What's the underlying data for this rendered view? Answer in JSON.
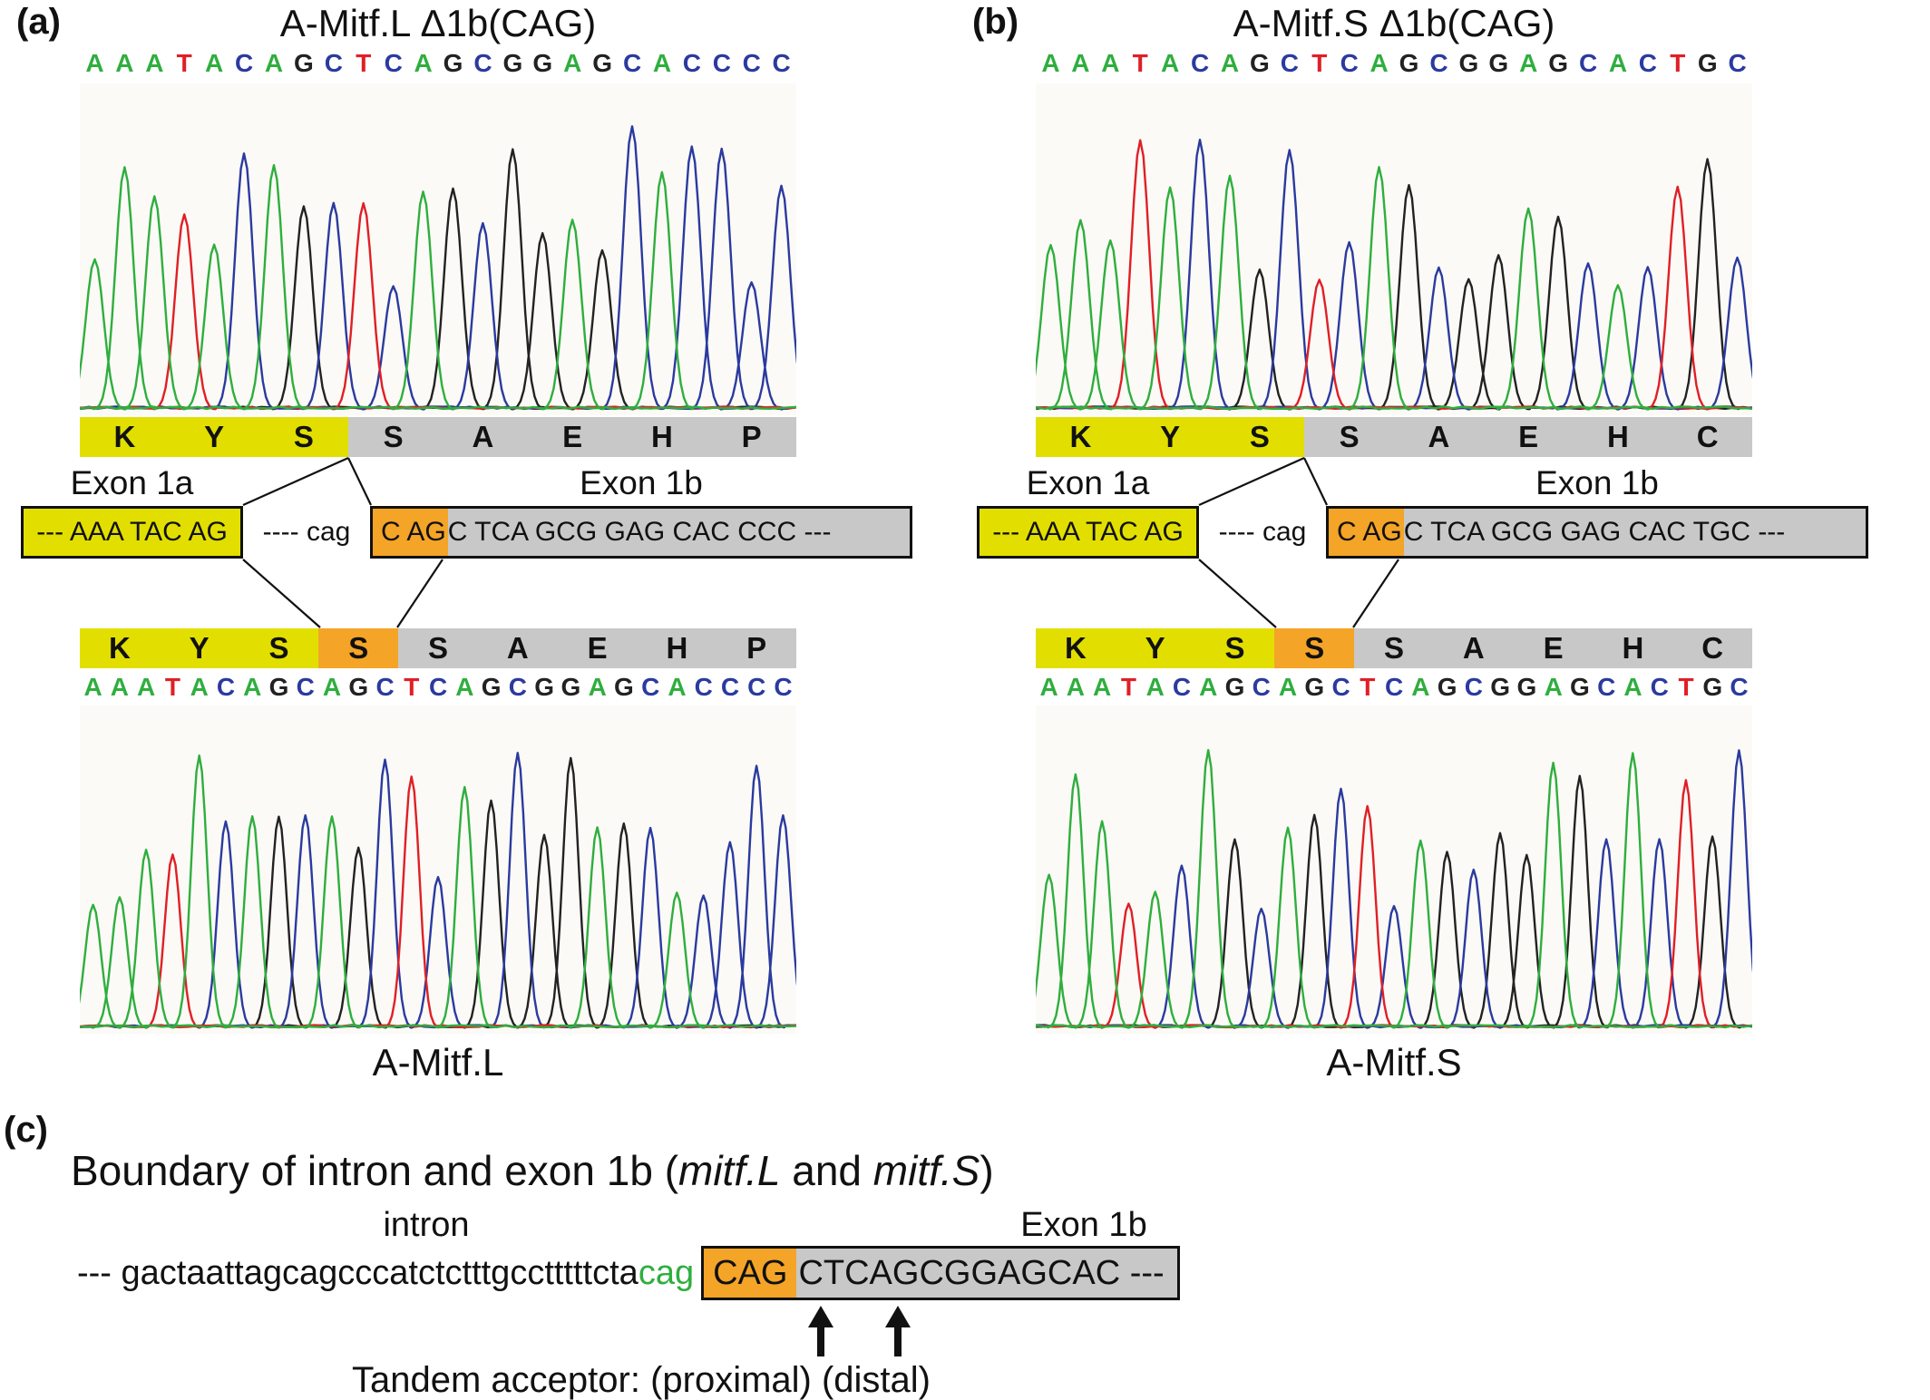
{
  "base_colors": {
    "A": "#2fae3e",
    "C": "#2b3a9f",
    "G": "#222222",
    "T": "#e01f26"
  },
  "highlight_colors": {
    "yellow": "#e2df00",
    "orange": "#f4a427",
    "gray": "#c8c8c8"
  },
  "panel_a": {
    "label": "(a)",
    "title": "A-Mitf.L Δ1b(CAG)",
    "caption": "A-Mitf.L",
    "top_sequence": "AAATACAGCTCAGCGGAGCACCCC",
    "bottom_sequence": "AAATACAGCAGCTCAGCGGAGCACCCC",
    "top_aa": [
      [
        "K",
        "yellow"
      ],
      [
        "Y",
        "yellow"
      ],
      [
        "S",
        "yellow"
      ],
      [
        "S",
        "gray"
      ],
      [
        "A",
        "gray"
      ],
      [
        "E",
        "gray"
      ],
      [
        "H",
        "gray"
      ],
      [
        "P",
        "gray"
      ]
    ],
    "bottom_aa": [
      [
        "K",
        "yellow"
      ],
      [
        "Y",
        "yellow"
      ],
      [
        "S",
        "yellow"
      ],
      [
        "S",
        "orange"
      ],
      [
        "S",
        "gray"
      ],
      [
        "A",
        "gray"
      ],
      [
        "E",
        "gray"
      ],
      [
        "H",
        "gray"
      ],
      [
        "P",
        "gray"
      ]
    ],
    "exon1a_label": "Exon 1a",
    "exon1b_label": "Exon 1b",
    "exon1a_text": "--- AAA TAC AG",
    "intron_text": "---- cag",
    "exon1b_orange_text": "C AG",
    "exon1b_gray_text": "C TCA GCG GAG CAC CCC ---"
  },
  "panel_b": {
    "label": "(b)",
    "title": "A-Mitf.S Δ1b(CAG)",
    "caption": "A-Mitf.S",
    "top_sequence": "AAATACAGCTCAGCGGAGCACTGC",
    "bottom_sequence": "AAATACAGCAGCTCAGCGGAGCACTGC",
    "top_aa": [
      [
        "K",
        "yellow"
      ],
      [
        "Y",
        "yellow"
      ],
      [
        "S",
        "yellow"
      ],
      [
        "S",
        "gray"
      ],
      [
        "A",
        "gray"
      ],
      [
        "E",
        "gray"
      ],
      [
        "H",
        "gray"
      ],
      [
        "C",
        "gray"
      ]
    ],
    "bottom_aa": [
      [
        "K",
        "yellow"
      ],
      [
        "Y",
        "yellow"
      ],
      [
        "S",
        "yellow"
      ],
      [
        "S",
        "orange"
      ],
      [
        "S",
        "gray"
      ],
      [
        "A",
        "gray"
      ],
      [
        "E",
        "gray"
      ],
      [
        "H",
        "gray"
      ],
      [
        "C",
        "gray"
      ]
    ],
    "exon1a_label": "Exon 1a",
    "exon1b_label": "Exon 1b",
    "exon1a_text": "--- AAA TAC AG",
    "intron_text": "---- cag",
    "exon1b_orange_text": "C AG",
    "exon1b_gray_text": "C TCA GCG GAG CAC TGC ---"
  },
  "panel_c": {
    "label": "(c)",
    "title": {
      "prefix": "Boundary of intron and exon 1b (",
      "italic1": "mitf.L",
      "middle": " and ",
      "italic2": "mitf.S",
      "suffix": ")"
    },
    "intron_label": "intron",
    "exon1b_label": "Exon 1b",
    "intron_seq": "--- gactaattagcagcccatctctttgcctttttcta",
    "acceptor_seq": "cag",
    "exon_orange_text": "CAG",
    "exon_gray_text": "CTCAGCGGAGCAC ---",
    "tandem_label": "Tandem acceptor: (proximal) (distal)"
  },
  "chart_data": [
    {
      "type": "line",
      "title": "A-Mitf.L Δ1b(CAG) Sanger chromatogram",
      "sequence": "AAATACAGCTCAGCGGAGCACCCC",
      "trace_colors": {
        "A": "green",
        "C": "blue",
        "G": "black",
        "T": "red"
      }
    },
    {
      "type": "line",
      "title": "A-Mitf.L Sanger chromatogram",
      "sequence": "AAATACAGCAGCTCAGCGGAGCACCCC",
      "trace_colors": {
        "A": "green",
        "C": "blue",
        "G": "black",
        "T": "red"
      }
    },
    {
      "type": "line",
      "title": "A-Mitf.S Δ1b(CAG) Sanger chromatogram",
      "sequence": "AAATACAGCTCAGCGGAGCACTGC",
      "trace_colors": {
        "A": "green",
        "C": "blue",
        "G": "black",
        "T": "red"
      }
    },
    {
      "type": "line",
      "title": "A-Mitf.S Sanger chromatogram",
      "sequence": "AAATACAGCAGCTCAGCGGAGCACTGC",
      "trace_colors": {
        "A": "green",
        "C": "blue",
        "G": "black",
        "T": "red"
      }
    }
  ]
}
